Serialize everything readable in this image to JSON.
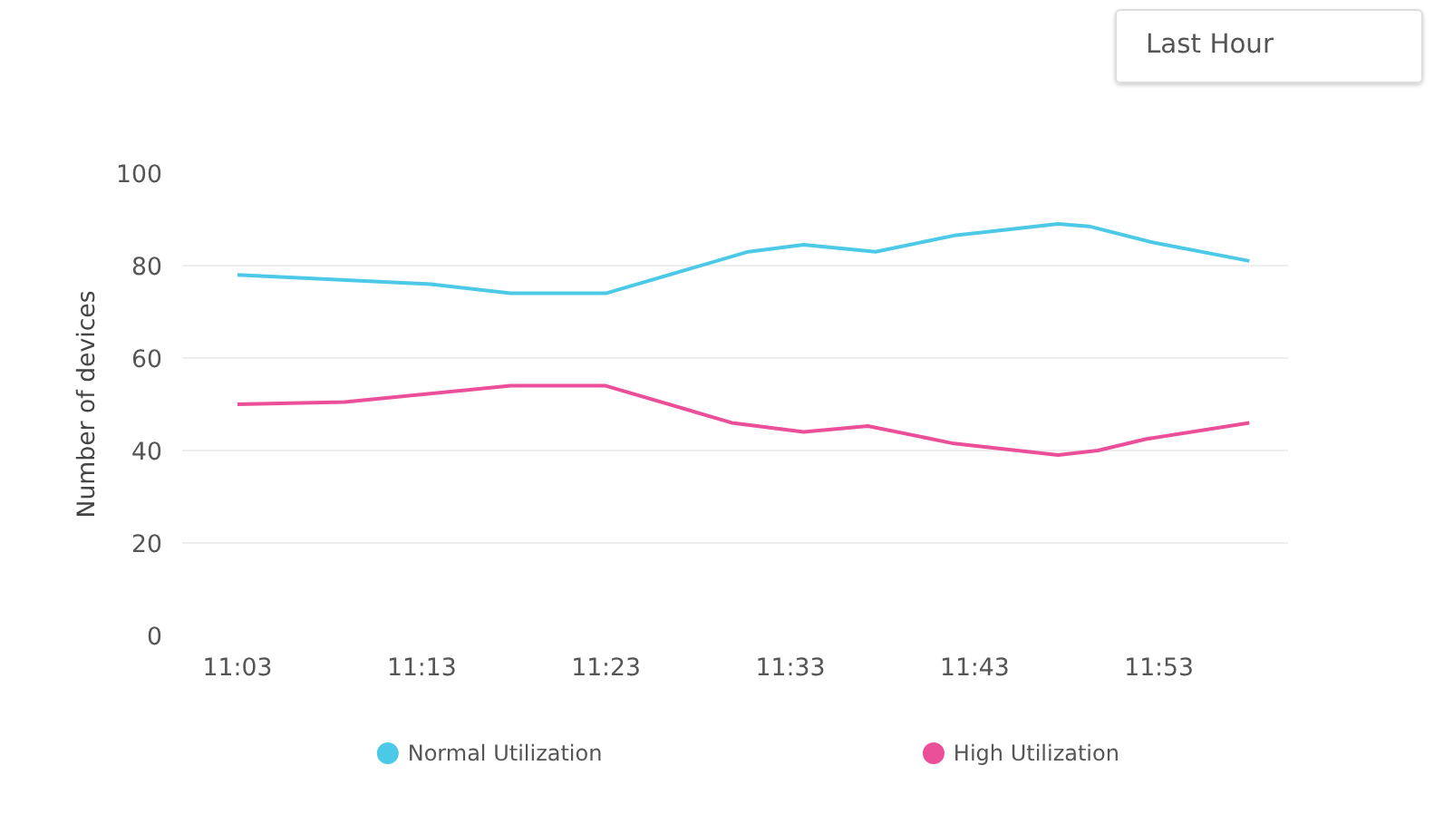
{
  "chart_data": {
    "type": "line",
    "ylabel": "Number of devices",
    "annotations": [
      "Last Hour"
    ],
    "xlim": [
      11.0,
      12.0
    ],
    "ylim": [
      0,
      100
    ],
    "xticks": [
      {
        "value": 11.05,
        "label": "11:03"
      },
      {
        "value": 11.2167,
        "label": "11:13"
      },
      {
        "value": 11.3833,
        "label": "11:23"
      },
      {
        "value": 11.55,
        "label": "11:33"
      },
      {
        "value": 11.7167,
        "label": "11:43"
      },
      {
        "value": 11.8833,
        "label": "11:53"
      }
    ],
    "yticks": [
      0,
      20,
      40,
      60,
      80,
      100
    ],
    "grid": "y",
    "legend": "bottom",
    "marker": "none",
    "line_style": "solid",
    "series": [
      {
        "name": "Normal Utilization",
        "color": "#4cc9e6",
        "x": [
          11.05,
          11.225,
          11.297,
          11.383,
          11.512,
          11.562,
          11.627,
          11.698,
          11.792,
          11.82,
          11.878,
          11.965
        ],
        "values": [
          78,
          76,
          74,
          74,
          83,
          84.5,
          83,
          86.5,
          89,
          88.5,
          85,
          81
        ]
      },
      {
        "name": "High Utilization",
        "color": "#ec4f9a",
        "x": [
          11.05,
          11.147,
          11.297,
          11.383,
          11.497,
          11.562,
          11.62,
          11.698,
          11.792,
          11.828,
          11.872,
          11.965
        ],
        "values": [
          50,
          50.5,
          54,
          54,
          46,
          44,
          45.3,
          41.5,
          39,
          40,
          42.5,
          46
        ]
      }
    ]
  }
}
